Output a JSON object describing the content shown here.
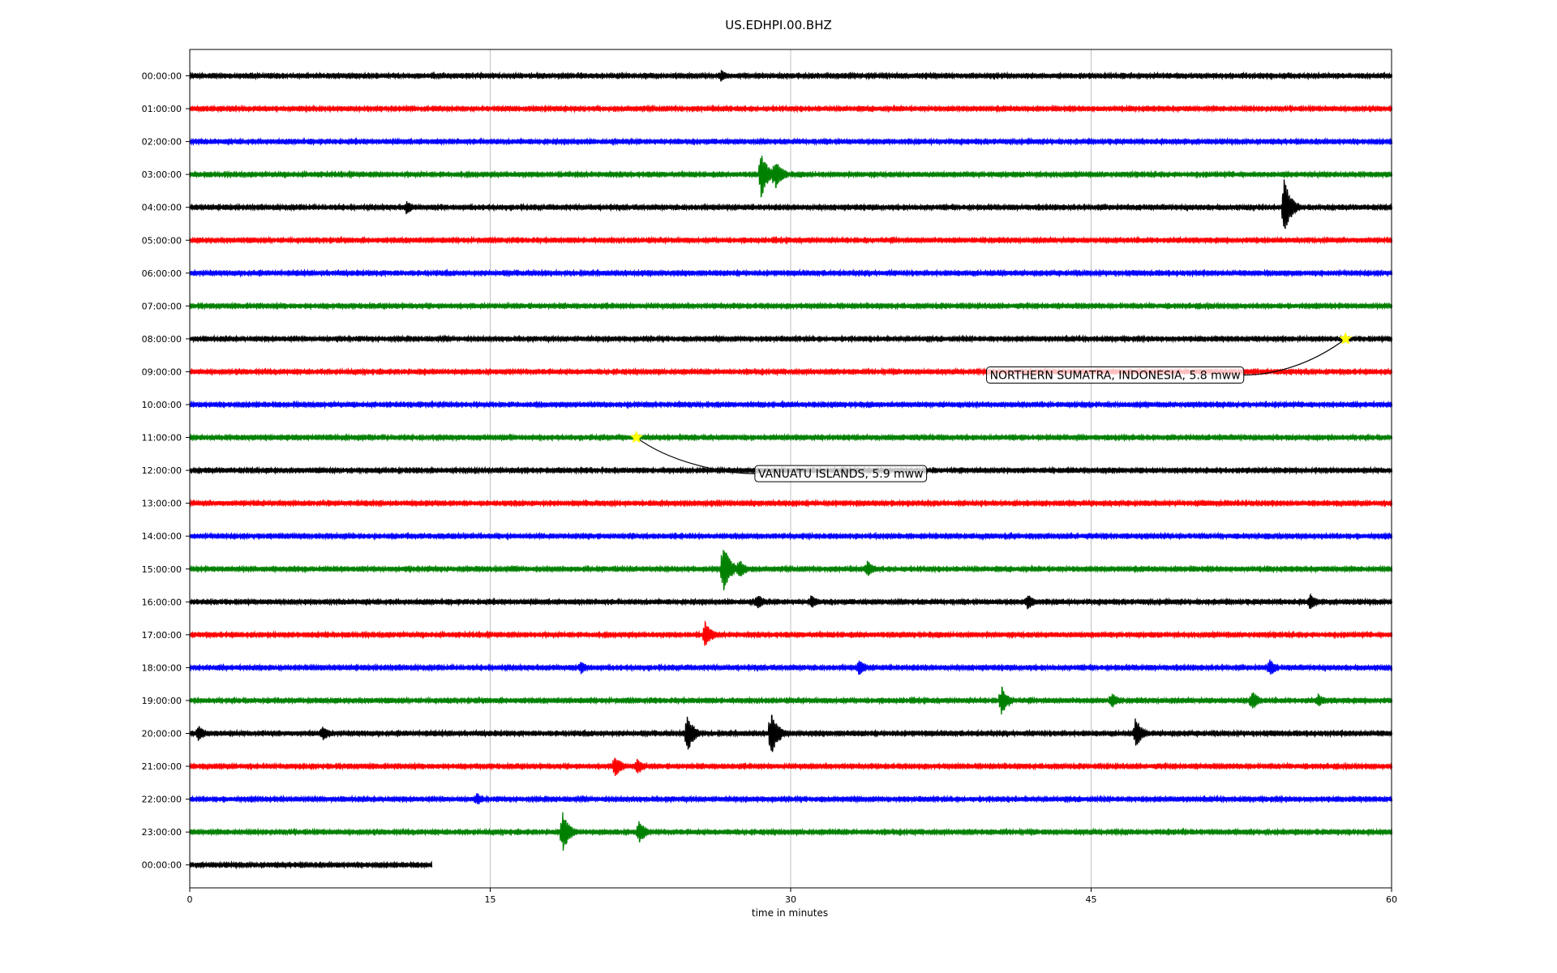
{
  "chart_data": {
    "type": "line",
    "title": "US.EDHPI.00.BHZ",
    "xlabel": "time in minutes",
    "ylabel": "",
    "xlim": [
      0,
      60
    ],
    "xticks": [
      0,
      15,
      30,
      45,
      60
    ],
    "grid": "vertical at x ticks",
    "color_cycle": [
      "#000000",
      "#ff0000",
      "#0000ff",
      "#008000"
    ],
    "rows": [
      {
        "label": "00:00:00",
        "bursts": [
          {
            "x": 26.5,
            "amp": 0.35
          }
        ]
      },
      {
        "label": "01:00:00",
        "bursts": []
      },
      {
        "label": "02:00:00",
        "bursts": []
      },
      {
        "label": "03:00:00",
        "bursts": [
          {
            "x": 28.5,
            "amp": 1.4
          },
          {
            "x": 29.2,
            "amp": 1.0
          }
        ]
      },
      {
        "label": "04:00:00",
        "bursts": [
          {
            "x": 10.8,
            "amp": 0.4
          },
          {
            "x": 54.6,
            "amp": 1.8
          },
          {
            "x": 54.8,
            "amp": 0.6
          }
        ]
      },
      {
        "label": "05:00:00",
        "bursts": []
      },
      {
        "label": "06:00:00",
        "bursts": []
      },
      {
        "label": "07:00:00",
        "bursts": []
      },
      {
        "label": "08:00:00",
        "bursts": []
      },
      {
        "label": "09:00:00",
        "bursts": []
      },
      {
        "label": "10:00:00",
        "bursts": []
      },
      {
        "label": "11:00:00",
        "bursts": []
      },
      {
        "label": "12:00:00",
        "bursts": []
      },
      {
        "label": "13:00:00",
        "bursts": []
      },
      {
        "label": "14:00:00",
        "bursts": []
      },
      {
        "label": "15:00:00",
        "bursts": [
          {
            "x": 26.6,
            "amp": 1.6
          },
          {
            "x": 27.4,
            "amp": 0.6
          },
          {
            "x": 33.8,
            "amp": 0.5
          }
        ]
      },
      {
        "label": "16:00:00",
        "bursts": [
          {
            "x": 28.3,
            "amp": 0.5
          },
          {
            "x": 31.0,
            "amp": 0.4
          },
          {
            "x": 41.8,
            "amp": 0.5
          },
          {
            "x": 55.9,
            "amp": 0.5
          }
        ]
      },
      {
        "label": "17:00:00",
        "bursts": [
          {
            "x": 25.7,
            "amp": 0.8
          }
        ]
      },
      {
        "label": "18:00:00",
        "bursts": [
          {
            "x": 19.5,
            "amp": 0.4
          },
          {
            "x": 33.4,
            "amp": 0.5
          },
          {
            "x": 53.9,
            "amp": 0.5
          }
        ]
      },
      {
        "label": "19:00:00",
        "bursts": [
          {
            "x": 40.5,
            "amp": 0.9
          },
          {
            "x": 46.0,
            "amp": 0.5
          },
          {
            "x": 53.0,
            "amp": 0.6
          },
          {
            "x": 56.3,
            "amp": 0.4
          }
        ]
      },
      {
        "label": "20:00:00",
        "bursts": [
          {
            "x": 0.4,
            "amp": 0.5
          },
          {
            "x": 6.6,
            "amp": 0.5
          },
          {
            "x": 24.8,
            "amp": 1.2
          },
          {
            "x": 29.0,
            "amp": 1.4
          },
          {
            "x": 47.2,
            "amp": 0.9
          }
        ]
      },
      {
        "label": "21:00:00",
        "bursts": [
          {
            "x": 21.2,
            "amp": 0.7
          },
          {
            "x": 22.3,
            "amp": 0.5
          }
        ]
      },
      {
        "label": "22:00:00",
        "bursts": [
          {
            "x": 14.3,
            "amp": 0.4
          }
        ]
      },
      {
        "label": "23:00:00",
        "bursts": [
          {
            "x": 18.6,
            "amp": 1.2
          },
          {
            "x": 22.4,
            "amp": 0.7
          }
        ]
      },
      {
        "label": "00:00:00",
        "bursts": [],
        "end_x": 12.1
      }
    ],
    "annotations": [
      {
        "text": "NORTHERN SUMATRA, INDONESIA, 5.8 mww",
        "event_row": 8,
        "event_x": 57.7,
        "label_x": 46.2,
        "label_row": 9.1,
        "marker_color": "#ffff00"
      },
      {
        "text": "VANUATU ISLANDS, 5.9 mww",
        "event_row": 11,
        "event_x": 22.3,
        "label_x": 32.5,
        "label_row": 12.1,
        "marker_color": "#ffff00"
      }
    ]
  }
}
